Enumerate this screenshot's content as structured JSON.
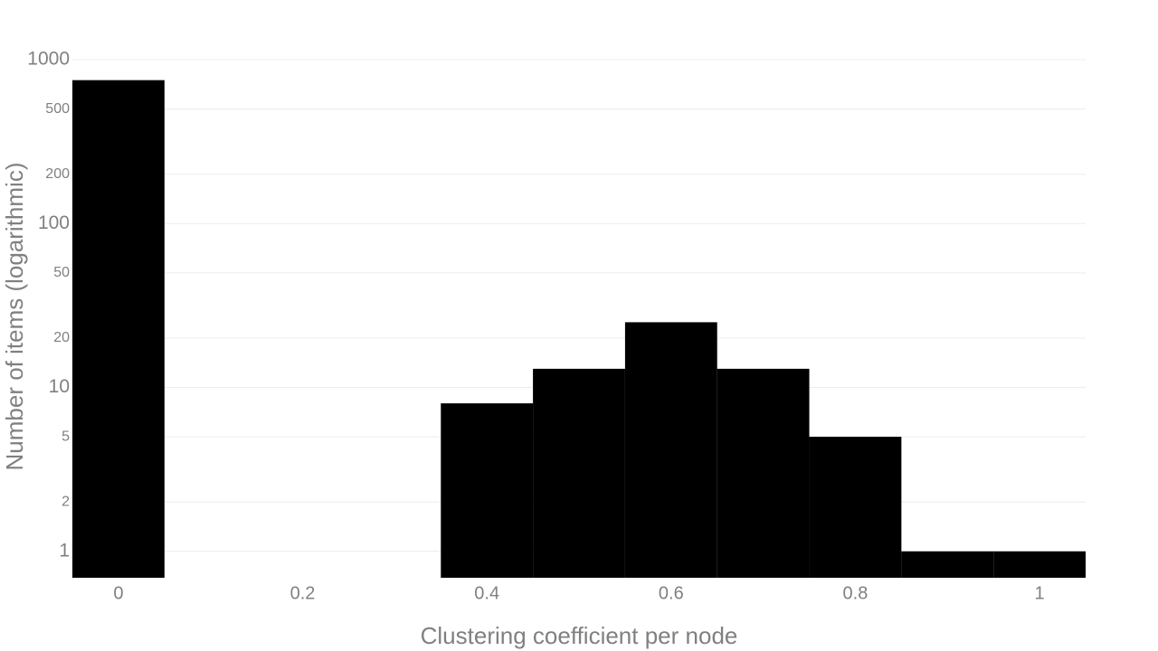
{
  "chart_data": {
    "type": "histogram",
    "x_label": "Clustering coefficient per node",
    "y_label": "Number of items (logarithmic)",
    "bins": [
      -0.05,
      0.05,
      0.15,
      0.25,
      0.35,
      0.45,
      0.55,
      0.65,
      0.75,
      0.85,
      0.95,
      1.05
    ],
    "counts": [
      750,
      0,
      0,
      0,
      8,
      13,
      25,
      13,
      5,
      1,
      1
    ],
    "color": "#000000",
    "xlim": [
      -0.05,
      1.05
    ],
    "xticks": [
      0,
      0.2,
      0.4,
      0.6,
      0.8,
      1
    ],
    "ylim": [
      0.69,
      1000
    ],
    "yticks": [
      1,
      2,
      5,
      10,
      20,
      50,
      100,
      200,
      500,
      1000
    ],
    "log_y": true,
    "grid": true
  }
}
